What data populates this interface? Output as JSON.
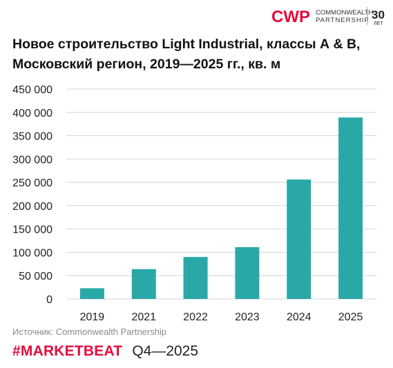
{
  "logo": {
    "mark": "CWP",
    "name_line1": "COMMONWEALTH",
    "name_line2": "PARTNERSHIP",
    "anniversary_number": "30",
    "anniversary_unit": "ЛЕТ",
    "brand_color": "#e30b3c"
  },
  "title_line1": "Новое строительство Light Industrial, классы А & В,",
  "title_line2": "Московский регион, 2019—2025 гг., кв. м",
  "source": "Источник: Commonwealth Partnership",
  "footer": {
    "brand": "#MARKETBEAT",
    "period": "Q4—2025"
  },
  "chart_data": {
    "type": "bar",
    "categories": [
      "2019",
      "2021",
      "2022",
      "2023",
      "2024",
      "2025"
    ],
    "values": [
      23000,
      64000,
      90000,
      111000,
      256000,
      389000
    ],
    "ylim": [
      0,
      450000
    ],
    "yticks": [
      0,
      50000,
      100000,
      150000,
      200000,
      250000,
      300000,
      350000,
      400000,
      450000
    ],
    "ytick_labels": [
      "0",
      "50 000",
      "100 000",
      "150 000",
      "200 000",
      "250 000",
      "300 000",
      "350 000",
      "400 000",
      "450 000"
    ],
    "grid": true,
    "bar_color": "#2aa8a8"
  }
}
